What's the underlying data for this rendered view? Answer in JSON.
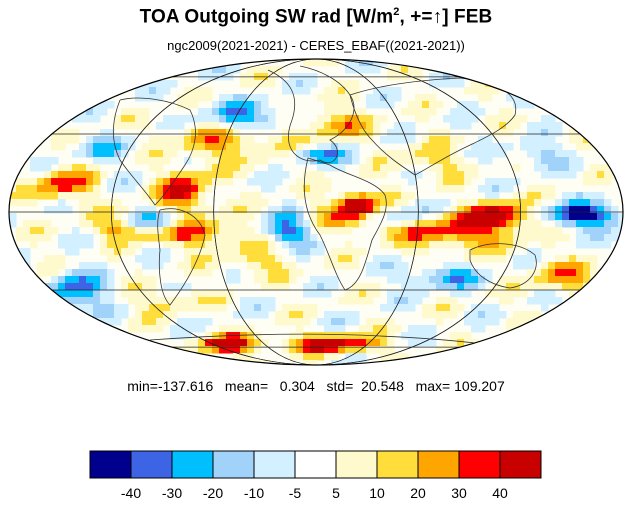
{
  "title": {
    "prefix": "TOA Outgoing SW rad [W/m",
    "exponent": "2",
    "suffix": ", +=",
    "arrow": "↑",
    "tail": "] FEB"
  },
  "subtitle": "ngc2009(2021-2021) - CERES_EBAF((2021-2021))",
  "stats": "min=-137.616   mean=   0.304   std=  20.548   max= 109.207",
  "colorbar": {
    "labels": [
      "-40",
      "-30",
      "-20",
      "-10",
      "-5",
      "5",
      "10",
      "20",
      "30",
      "40"
    ],
    "colors": [
      "#00008c",
      "#3e64e6",
      "#00bfff",
      "#a0d2fa",
      "#d2f0ff",
      "#ffffff",
      "#fffacd",
      "#ffde3c",
      "#ffa500",
      "#ff0000",
      "#c80000"
    ]
  }
}
